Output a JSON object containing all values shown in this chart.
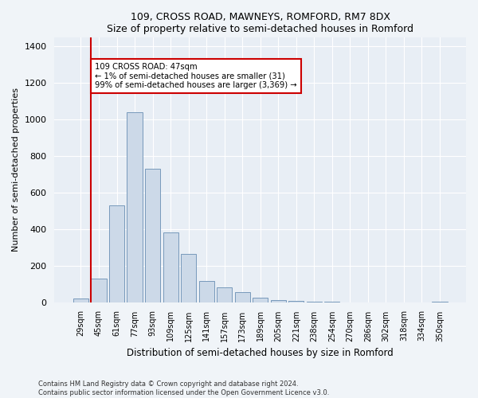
{
  "title1": "109, CROSS ROAD, MAWNEYS, ROMFORD, RM7 8DX",
  "title2": "Size of property relative to semi-detached houses in Romford",
  "xlabel": "Distribution of semi-detached houses by size in Romford",
  "ylabel": "Number of semi-detached properties",
  "categories": [
    "29sqm",
    "45sqm",
    "61sqm",
    "77sqm",
    "93sqm",
    "109sqm",
    "125sqm",
    "141sqm",
    "157sqm",
    "173sqm",
    "189sqm",
    "205sqm",
    "221sqm",
    "238sqm",
    "254sqm",
    "270sqm",
    "286sqm",
    "302sqm",
    "318sqm",
    "334sqm",
    "350sqm"
  ],
  "values": [
    20,
    130,
    530,
    1040,
    730,
    380,
    265,
    115,
    80,
    55,
    25,
    12,
    5,
    2,
    1,
    0,
    0,
    0,
    0,
    0,
    3
  ],
  "bar_color": "#ccd9e8",
  "bar_edge_color": "#7799bb",
  "highlight_color_red": "#cc0000",
  "annotation_title": "109 CROSS ROAD: 47sqm",
  "annotation_line1": "← 1% of semi-detached houses are smaller (31)",
  "annotation_line2": "99% of semi-detached houses are larger (3,369) →",
  "ylim": [
    0,
    1450
  ],
  "yticks": [
    0,
    200,
    400,
    600,
    800,
    1000,
    1200,
    1400
  ],
  "footer1": "Contains HM Land Registry data © Crown copyright and database right 2024.",
  "footer2": "Contains public sector information licensed under the Open Government Licence v3.0.",
  "bg_color": "#f0f4f8",
  "plot_bg_color": "#e8eef5"
}
